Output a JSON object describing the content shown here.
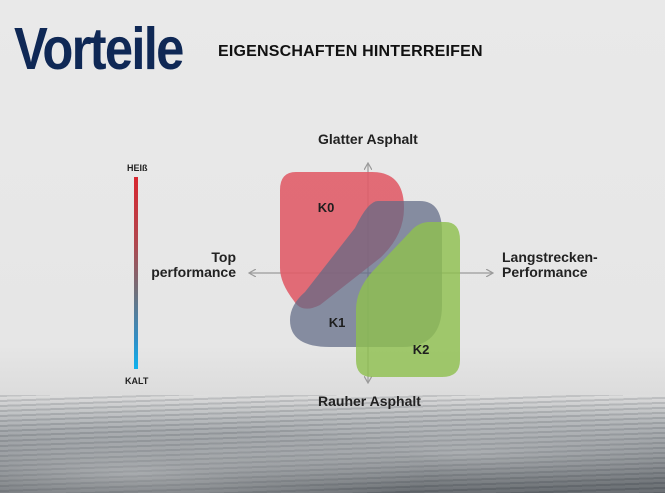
{
  "header": {
    "title": "Vorteile",
    "subtitle": "EIGENSCHAFTEN HINTERREIFEN"
  },
  "axes": {
    "top": "Glatter Asphalt",
    "bottom": "Rauher Asphalt",
    "left_line1": "Top",
    "left_line2": "performance",
    "right_line1": "Langstrecken-",
    "right_line2": "Performance"
  },
  "temperature_scale": {
    "top": "HEIß",
    "bottom": "KALT",
    "colors": {
      "hot": "#d8262f",
      "cold": "#0db2ee"
    }
  },
  "compounds": [
    {
      "label": "K0",
      "color": "#e05a66"
    },
    {
      "label": "K1",
      "color": "#5f6a85"
    },
    {
      "label": "K2",
      "color": "#8fc04f"
    }
  ]
}
